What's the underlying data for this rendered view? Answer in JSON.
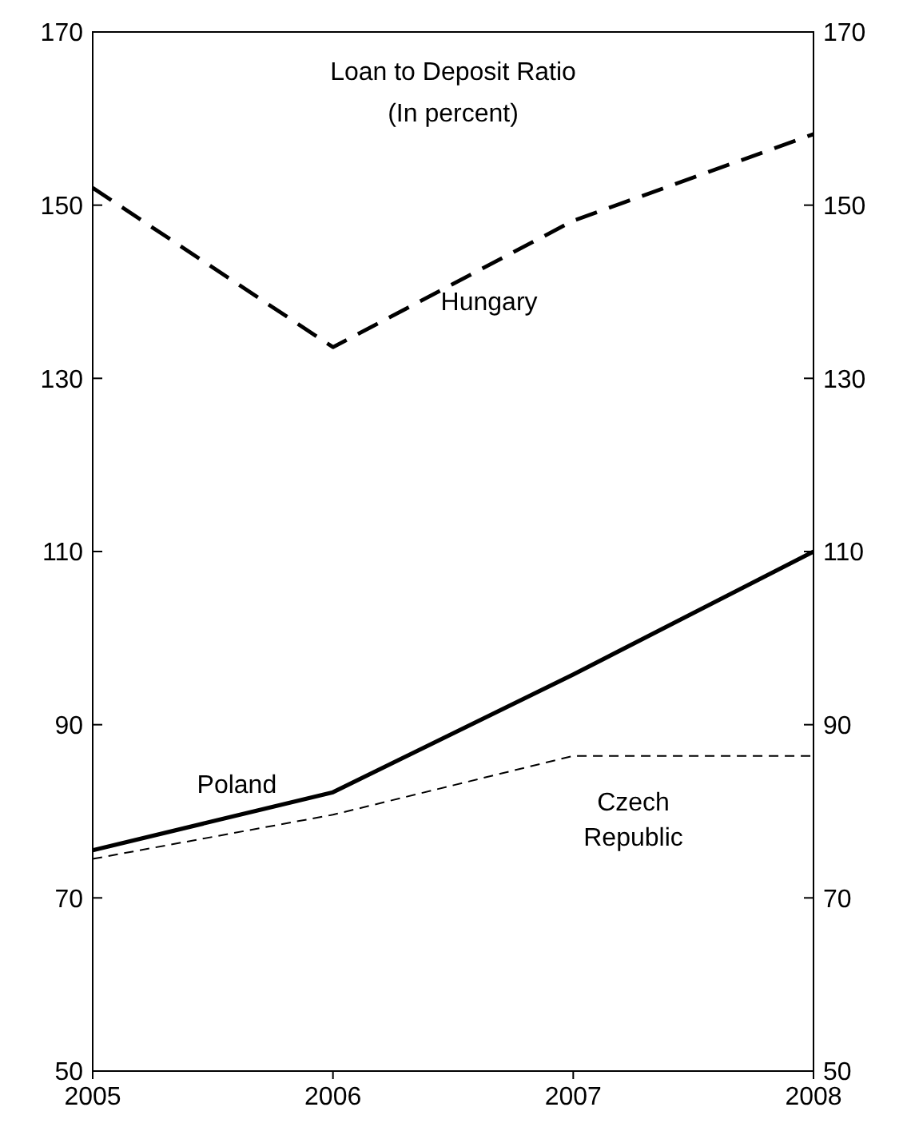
{
  "chart_data": {
    "type": "line",
    "title": "Loan to Deposit Ratio",
    "subtitle": "(In percent)",
    "x": [
      2005,
      2006,
      2007,
      2008
    ],
    "xlim": [
      2005,
      2008
    ],
    "xticks": [
      2005,
      2006,
      2007,
      2008
    ],
    "ylim": [
      50,
      170
    ],
    "yticks": [
      50,
      70,
      90,
      110,
      130,
      150,
      170
    ],
    "y2lim": [
      50,
      170
    ],
    "y2ticks": [
      50,
      70,
      90,
      110,
      130,
      150,
      170
    ],
    "grid": false,
    "legend": false,
    "marker": "none",
    "series": [
      {
        "name": "Hungary",
        "color": "#000000",
        "line_style": "dashed",
        "values": [
          152,
          133.6,
          148.2,
          158.2
        ]
      },
      {
        "name": "Poland",
        "color": "#000000",
        "line_style": "solid",
        "values": [
          75.5,
          82.2,
          95.8,
          110
        ]
      },
      {
        "name": "Czech Republic",
        "color": "#000000",
        "line_style": "dashed",
        "values": [
          74.5,
          79.6,
          86.4,
          86.4
        ]
      }
    ]
  }
}
